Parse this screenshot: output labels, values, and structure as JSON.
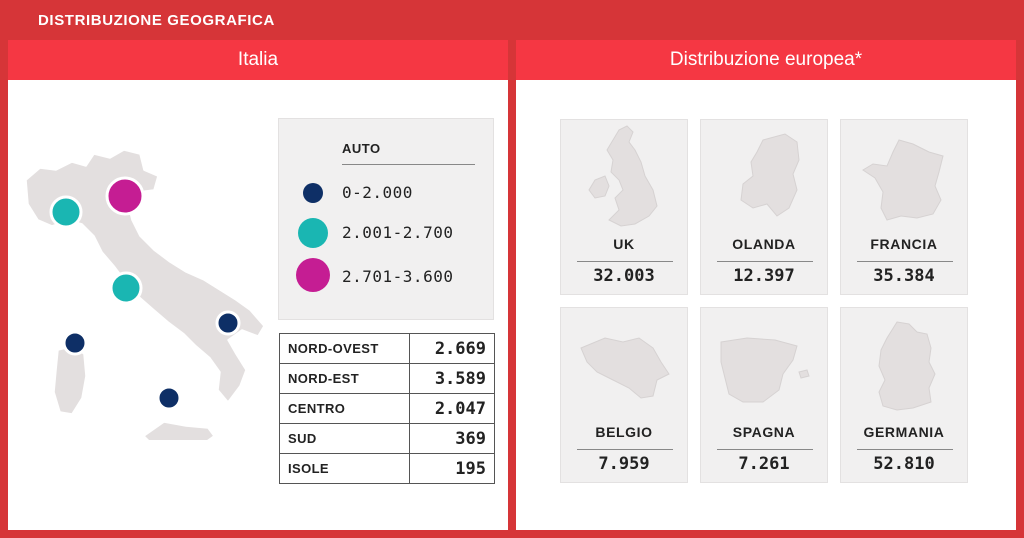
{
  "title": "DISTRIBUZIONE GEOGRAFICA",
  "italy": {
    "header": "Italia",
    "legend": {
      "title": "AUTO",
      "items": [
        {
          "label": "0-2.000",
          "color": "#0e2f66"
        },
        {
          "label": "2.001-2.700",
          "color": "#1ab6b2"
        },
        {
          "label": "2.701-3.600",
          "color": "#c51d93"
        }
      ]
    },
    "regions": [
      {
        "name": "NORD-OVEST",
        "value": "2.669"
      },
      {
        "name": "NORD-EST",
        "value": "3.589"
      },
      {
        "name": "CENTRO",
        "value": "2.047"
      },
      {
        "name": "SUD",
        "value": "369"
      },
      {
        "name": "ISOLE",
        "value": "195"
      }
    ]
  },
  "europe": {
    "header": "Distribuzione europea*",
    "countries": [
      {
        "name": "UK",
        "value": "32.003"
      },
      {
        "name": "OLANDA",
        "value": "12.397"
      },
      {
        "name": "FRANCIA",
        "value": "35.384"
      },
      {
        "name": "BELGIO",
        "value": "7.959"
      },
      {
        "name": "SPAGNA",
        "value": "7.261"
      },
      {
        "name": "GERMANIA",
        "value": "52.810"
      }
    ]
  },
  "colors": {
    "background": "#d63538",
    "panel_header": "#f53743",
    "map_fill": "#e3dfdf"
  }
}
